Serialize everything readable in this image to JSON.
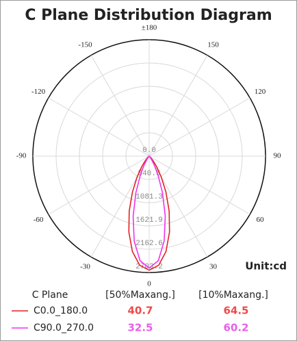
{
  "chart_data": {
    "type": "polar",
    "title": "C Plane Distribution Diagram",
    "unit_label": "Unit:cd",
    "rlim": [
      0,
      2703.2
    ],
    "rticks": [
      {
        "value": 0,
        "label": "0.0"
      },
      540.6,
      1081.3,
      1621.9,
      2162.6,
      2703.2
    ],
    "thetaticks": [
      {
        "value": 180,
        "label": "±180"
      },
      150,
      120,
      90,
      60,
      30,
      0,
      -30,
      -60,
      -90,
      -120,
      -150
    ],
    "theta": [
      -90,
      -50,
      -45,
      -40,
      -35,
      -30,
      -25,
      -20,
      -15,
      -10,
      -5,
      0,
      5,
      10,
      15,
      20,
      25,
      30,
      35,
      40,
      45,
      50,
      90
    ],
    "legend_headers": [
      "C Plane",
      "[50%Maxang.]",
      "[10%Maxang.]"
    ],
    "series": [
      {
        "name": "C0.0_180.0",
        "color": "#e02020",
        "text_color": "#ee4a4a",
        "beam_50": 40.7,
        "beam_10": 64.5,
        "values": [
          0,
          23,
          64,
          151,
          310,
          564,
          920,
          1357,
          1825,
          2248,
          2543,
          2650,
          2543,
          2248,
          1825,
          1357,
          920,
          564,
          310,
          151,
          64,
          23,
          0
        ]
      },
      {
        "name": "C90.0_270.0",
        "color": "#f030f0",
        "text_color": "#e860e8",
        "beam_50": 32.5,
        "beam_10": 60.2,
        "values": [
          0,
          0,
          7,
          28,
          88,
          225,
          488,
          903,
          1442,
          2004,
          2437,
          2600,
          2437,
          2004,
          1442,
          903,
          488,
          225,
          88,
          28,
          7,
          0,
          0
        ]
      }
    ]
  }
}
